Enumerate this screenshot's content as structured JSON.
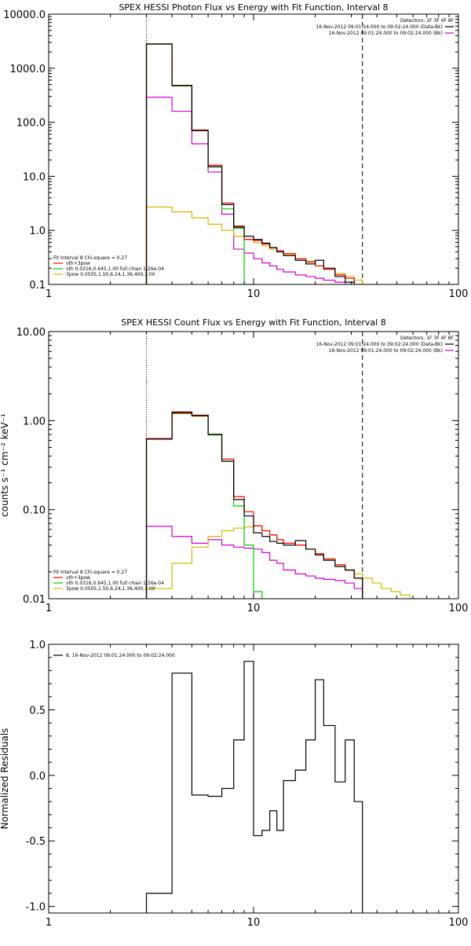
{
  "chart_data": [
    {
      "type": "line",
      "title": "SPEX HESSI Photon Flux vs Energy with Fit Function, Interval 8",
      "xscale": "log",
      "yscale": "log",
      "xlim": [
        1,
        100
      ],
      "ylim": [
        0.1,
        10000
      ],
      "xticks": [
        {
          "v": 1,
          "label": "1"
        },
        {
          "v": 10,
          "label": "10"
        },
        {
          "v": 100,
          "label": "100"
        }
      ],
      "yticks": [
        {
          "v": 0.1,
          "label": "0.1"
        },
        {
          "v": 1,
          "label": "1.0"
        },
        {
          "v": 10,
          "label": "10.0"
        },
        {
          "v": 100,
          "label": "100.0"
        },
        {
          "v": 1000,
          "label": "1000.0"
        },
        {
          "v": 10000,
          "label": "10000.0"
        }
      ],
      "fit_range": [
        3,
        34
      ],
      "edges": [
        3,
        4,
        5,
        6,
        7,
        8,
        9,
        10,
        11,
        12,
        13,
        14,
        16,
        18,
        20,
        22,
        25,
        28,
        31,
        34,
        38,
        42,
        47,
        52,
        58,
        65,
        72
      ],
      "series": [
        {
          "name": "data",
          "color": "#000000",
          "values": [
            2800,
            480,
            70,
            15,
            3.0,
            1.15,
            0.78,
            0.68,
            0.58,
            0.48,
            0.4,
            0.34,
            0.28,
            0.24,
            0.28,
            0.2,
            0.14,
            0.11
          ]
        },
        {
          "name": "vth+3pow",
          "color": "#ff0000",
          "values": [
            2800,
            480,
            72,
            16,
            3.2,
            1.2,
            0.68,
            0.65,
            0.56,
            0.48,
            0.42,
            0.37,
            0.3,
            0.26,
            0.22,
            0.19,
            0.15,
            0.13,
            0.1
          ]
        },
        {
          "name": "vth",
          "color": "#00cc00",
          "values": [
            2800,
            470,
            70,
            15,
            2.5,
            1.1,
            0.09
          ]
        },
        {
          "name": "3pow",
          "color": "#d4b800",
          "values": [
            2.7,
            2.2,
            1.7,
            1.3,
            1.0,
            0.78,
            0.68,
            0.6,
            0.52,
            0.45,
            0.4,
            0.36,
            0.3,
            0.27,
            0.22,
            0.19,
            0.16,
            0.14,
            0.12,
            0.1
          ]
        },
        {
          "name": "bkg",
          "color": "#d000d0",
          "values": [
            290,
            160,
            40,
            12,
            2.0,
            0.45,
            0.38,
            0.3,
            0.25,
            0.22,
            0.19,
            0.17,
            0.15,
            0.14,
            0.13,
            0.12,
            0.11,
            0.1
          ]
        }
      ],
      "legend_right": {
        "title": "Detectors: 1F 3F 4F 8F",
        "items": [
          {
            "text": "16-Nov-2012 09:01:24.000 to 09:02:24.000 (Data-Bk)",
            "color": "#000000"
          },
          {
            "text": "16-Nov-2012 09:01:24.000 to 09:02:24.000 (Bk)",
            "color": "#d000d0"
          }
        ]
      },
      "legend_left": {
        "header": "Fit Interval 8   Chi-square = 0.27",
        "items": [
          {
            "text": "vth+3pow",
            "color": "#ff0000"
          },
          {
            "text": "vth 0.0316,0.645,1.00  full chian 1.26e-04",
            "color": "#00cc00"
          },
          {
            "text": "3pow 0.0505,1.50,6.24,1.36,400,1.00",
            "color": "#d4b800"
          }
        ]
      }
    },
    {
      "type": "line",
      "title": "SPEX HESSI Count Flux vs Energy with Fit Function, Interval 8",
      "ylabel": "counts s⁻¹ cm⁻² keV⁻¹",
      "xscale": "log",
      "yscale": "log",
      "xlim": [
        1,
        100
      ],
      "ylim": [
        0.01,
        10
      ],
      "xticks": [
        {
          "v": 1,
          "label": "1"
        },
        {
          "v": 10,
          "label": "10"
        },
        {
          "v": 100,
          "label": "100"
        }
      ],
      "yticks": [
        {
          "v": 0.01,
          "label": "0.01"
        },
        {
          "v": 0.1,
          "label": "0.10"
        },
        {
          "v": 1,
          "label": "1.00"
        },
        {
          "v": 10,
          "label": "10.00"
        }
      ],
      "fit_range": [
        3,
        34
      ],
      "edges": [
        3,
        4,
        5,
        6,
        7,
        8,
        9,
        10,
        11,
        12,
        13,
        14,
        16,
        18,
        20,
        22,
        25,
        28,
        31,
        34,
        38,
        42,
        47,
        52,
        58,
        65,
        72
      ],
      "series": [
        {
          "name": "data",
          "color": "#000000",
          "values": [
            0.62,
            1.25,
            1.15,
            0.7,
            0.35,
            0.13,
            0.085,
            0.055,
            0.05,
            0.044,
            0.042,
            0.04,
            0.045,
            0.036,
            0.031,
            0.027,
            0.023,
            0.021,
            0.017
          ]
        },
        {
          "name": "vth+3pow",
          "color": "#ff0000",
          "values": [
            0.63,
            1.22,
            1.13,
            0.7,
            0.37,
            0.14,
            0.095,
            0.066,
            0.058,
            0.052,
            0.046,
            0.042,
            0.04,
            0.036,
            0.032,
            0.028,
            0.024,
            0.021,
            0.017
          ]
        },
        {
          "name": "vth",
          "color": "#00cc00",
          "values": [
            0.63,
            1.2,
            1.12,
            0.69,
            0.35,
            0.11,
            0.04,
            0.012
          ]
        },
        {
          "name": "3pow",
          "color": "#d4b800",
          "values": [
            0.013,
            0.025,
            0.038,
            0.05,
            0.058,
            0.062,
            0.064,
            0.066,
            0.058,
            0.052,
            0.046,
            0.042,
            0.04,
            0.036,
            0.032,
            0.028,
            0.024,
            0.021,
            0.019,
            0.017,
            0.015,
            0.013,
            0.012,
            0.011,
            0.01
          ]
        },
        {
          "name": "bkg",
          "color": "#d000d0",
          "values": [
            0.065,
            0.05,
            0.042,
            0.046,
            0.04,
            0.038,
            0.037,
            0.036,
            0.033,
            0.027,
            0.025,
            0.021,
            0.019,
            0.018,
            0.017,
            0.0165,
            0.016,
            0.015,
            0.013
          ]
        }
      ],
      "legend_right": {
        "title": "Detectors: 1F 3F 4F 8F",
        "items": [
          {
            "text": "16-Nov-2012 09:01:24.000 to 09:02:24.000 (Data-Bk)",
            "color": "#000000"
          },
          {
            "text": "16-Nov-2012 09:01:24.000 to 09:02:24.000 (Bk)",
            "color": "#d000d0"
          }
        ]
      },
      "legend_left": {
        "header": "Fit Interval 8   Chi-square = 0.27",
        "items": [
          {
            "text": "vth+3pow",
            "color": "#ff0000"
          },
          {
            "text": "vth 0.0316,0.645,1.00  full chian 1.26e-04",
            "color": "#00cc00"
          },
          {
            "text": "3pow 0.0505,1.50,6.24,1.36,400,1.00",
            "color": "#d4b800"
          }
        ]
      }
    },
    {
      "type": "line",
      "title": "",
      "ylabel": "Normalized Residuals",
      "xscale": "log",
      "yscale": "linear",
      "xlim": [
        1,
        100
      ],
      "ylim": [
        -1.05,
        1.0
      ],
      "xticks": [
        {
          "v": 1,
          "label": "1"
        },
        {
          "v": 10,
          "label": "10"
        },
        {
          "v": 100,
          "label": "100"
        }
      ],
      "yticks": [
        {
          "v": -1.0,
          "label": "-1.0"
        },
        {
          "v": -0.5,
          "label": "-0.5"
        },
        {
          "v": 0.0,
          "label": "0.0"
        },
        {
          "v": 0.5,
          "label": "0.5"
        },
        {
          "v": 1.0,
          "label": "1.0"
        }
      ],
      "edges": [
        3,
        4,
        5,
        6,
        7,
        8,
        9,
        10,
        11,
        12,
        13,
        14,
        16,
        18,
        20,
        22,
        25,
        28,
        31,
        34
      ],
      "series": [
        {
          "name": "8, 16-Nov-2012 09:01:24.000 to 09:02:24.000",
          "color": "#000000",
          "values": [
            -0.9,
            0.78,
            -0.15,
            -0.16,
            -0.1,
            0.27,
            0.87,
            -0.46,
            -0.42,
            -0.27,
            -0.42,
            -0.04,
            0.04,
            0.27,
            0.73,
            0.38,
            -0.05,
            0.27,
            -0.2
          ]
        }
      ],
      "legend_left": {
        "header": "",
        "items": [
          {
            "text": "8, 16-Nov-2012 09:01:24.000 to 09:02:24.000",
            "color": "#000000"
          }
        ]
      }
    }
  ]
}
